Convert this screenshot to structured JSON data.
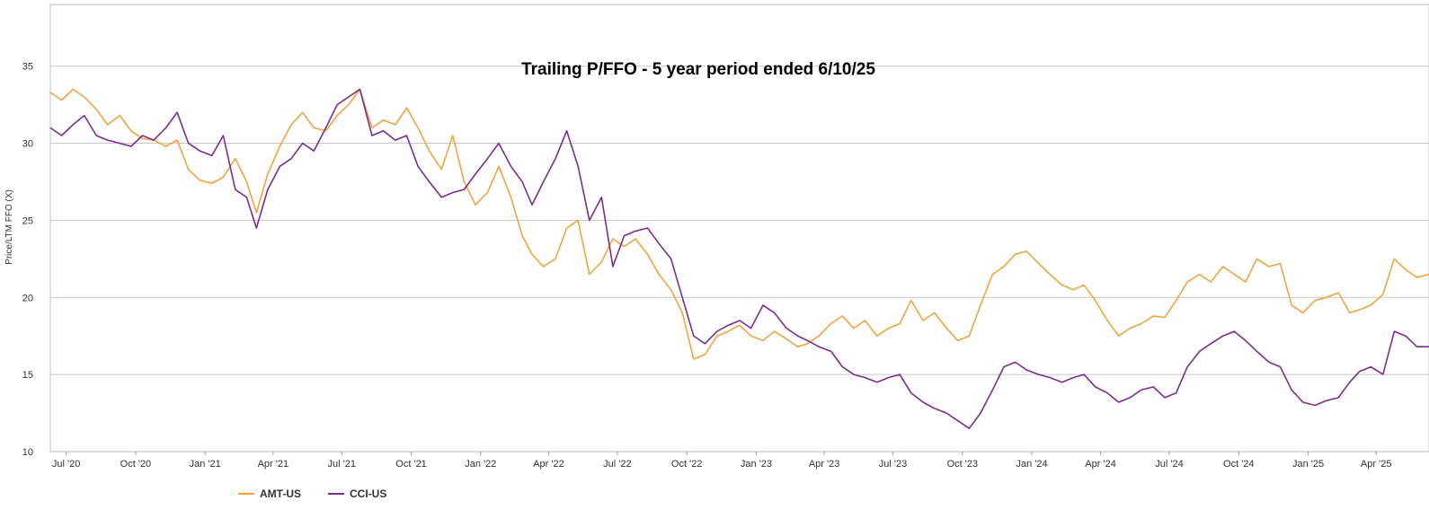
{
  "chart_data": {
    "type": "line",
    "title": "Trailing P/FFO - 5 year period ended 6/10/25",
    "ylabel": "Price/LTM FFO (X)",
    "xlabel": "",
    "ylim": [
      10,
      39
    ],
    "x_start": "2020-06-10",
    "x_end": "2025-06-10",
    "y_ticks": [
      10,
      15,
      20,
      25,
      30,
      35
    ],
    "x_ticks": [
      {
        "label": "Jul '20",
        "date": "2020-07-01"
      },
      {
        "label": "Oct '20",
        "date": "2020-10-01"
      },
      {
        "label": "Jan '21",
        "date": "2021-01-01"
      },
      {
        "label": "Apr '21",
        "date": "2021-04-01"
      },
      {
        "label": "Jul '21",
        "date": "2021-07-01"
      },
      {
        "label": "Oct '21",
        "date": "2021-10-01"
      },
      {
        "label": "Jan '22",
        "date": "2022-01-01"
      },
      {
        "label": "Apr '22",
        "date": "2022-04-01"
      },
      {
        "label": "Jul '22",
        "date": "2022-07-01"
      },
      {
        "label": "Oct '22",
        "date": "2022-10-01"
      },
      {
        "label": "Jan '23",
        "date": "2023-01-01"
      },
      {
        "label": "Apr '23",
        "date": "2023-04-01"
      },
      {
        "label": "Jul '23",
        "date": "2023-07-01"
      },
      {
        "label": "Oct '23",
        "date": "2023-10-01"
      },
      {
        "label": "Jan '24",
        "date": "2024-01-01"
      },
      {
        "label": "Apr '24",
        "date": "2024-04-01"
      },
      {
        "label": "Jul '24",
        "date": "2024-07-01"
      },
      {
        "label": "Oct '24",
        "date": "2024-10-01"
      },
      {
        "label": "Jan '25",
        "date": "2025-01-01"
      },
      {
        "label": "Apr '25",
        "date": "2025-04-01"
      }
    ],
    "grid": "horizontal",
    "legend_position": "bottom-left",
    "series": [
      {
        "name": "AMT-US",
        "color": "#F2A341",
        "points": [
          [
            "2020-06-10",
            33.3
          ],
          [
            "2020-06-25",
            32.8
          ],
          [
            "2020-07-10",
            33.5
          ],
          [
            "2020-07-25",
            33.0
          ],
          [
            "2020-08-10",
            32.2
          ],
          [
            "2020-08-25",
            31.2
          ],
          [
            "2020-09-10",
            31.8
          ],
          [
            "2020-09-25",
            30.8
          ],
          [
            "2020-10-10",
            30.3
          ],
          [
            "2020-10-25",
            30.2
          ],
          [
            "2020-11-10",
            29.8
          ],
          [
            "2020-11-25",
            30.2
          ],
          [
            "2020-12-10",
            28.3
          ],
          [
            "2020-12-25",
            27.6
          ],
          [
            "2021-01-10",
            27.4
          ],
          [
            "2021-01-25",
            27.8
          ],
          [
            "2021-02-10",
            29.0
          ],
          [
            "2021-02-25",
            27.5
          ],
          [
            "2021-03-10",
            25.5
          ],
          [
            "2021-03-25",
            28.0
          ],
          [
            "2021-04-10",
            29.8
          ],
          [
            "2021-04-25",
            31.2
          ],
          [
            "2021-05-10",
            32.0
          ],
          [
            "2021-05-25",
            31.0
          ],
          [
            "2021-06-10",
            30.8
          ],
          [
            "2021-06-25",
            31.8
          ],
          [
            "2021-07-10",
            32.5
          ],
          [
            "2021-07-25",
            33.5
          ],
          [
            "2021-08-10",
            31.0
          ],
          [
            "2021-08-25",
            31.5
          ],
          [
            "2021-09-10",
            31.2
          ],
          [
            "2021-09-25",
            32.3
          ],
          [
            "2021-10-10",
            31.0
          ],
          [
            "2021-10-25",
            29.5
          ],
          [
            "2021-11-10",
            28.3
          ],
          [
            "2021-11-25",
            30.5
          ],
          [
            "2021-12-10",
            27.5
          ],
          [
            "2021-12-25",
            26.0
          ],
          [
            "2022-01-10",
            26.8
          ],
          [
            "2022-01-25",
            28.5
          ],
          [
            "2022-02-10",
            26.5
          ],
          [
            "2022-02-25",
            24.0
          ],
          [
            "2022-03-10",
            22.8
          ],
          [
            "2022-03-25",
            22.0
          ],
          [
            "2022-04-10",
            22.5
          ],
          [
            "2022-04-25",
            24.5
          ],
          [
            "2022-05-10",
            25.0
          ],
          [
            "2022-05-25",
            21.5
          ],
          [
            "2022-06-10",
            22.3
          ],
          [
            "2022-06-25",
            23.8
          ],
          [
            "2022-07-10",
            23.3
          ],
          [
            "2022-07-25",
            23.8
          ],
          [
            "2022-08-10",
            22.8
          ],
          [
            "2022-08-25",
            21.5
          ],
          [
            "2022-09-10",
            20.5
          ],
          [
            "2022-09-25",
            19.0
          ],
          [
            "2022-10-10",
            16.0
          ],
          [
            "2022-10-25",
            16.3
          ],
          [
            "2022-11-10",
            17.5
          ],
          [
            "2022-11-25",
            17.8
          ],
          [
            "2022-12-10",
            18.2
          ],
          [
            "2022-12-25",
            17.5
          ],
          [
            "2023-01-10",
            17.2
          ],
          [
            "2023-01-25",
            17.8
          ],
          [
            "2023-02-10",
            17.3
          ],
          [
            "2023-02-25",
            16.8
          ],
          [
            "2023-03-10",
            17.0
          ],
          [
            "2023-03-25",
            17.5
          ],
          [
            "2023-04-10",
            18.3
          ],
          [
            "2023-04-25",
            18.8
          ],
          [
            "2023-05-10",
            18.0
          ],
          [
            "2023-05-25",
            18.5
          ],
          [
            "2023-06-10",
            17.5
          ],
          [
            "2023-06-25",
            18.0
          ],
          [
            "2023-07-10",
            18.3
          ],
          [
            "2023-07-25",
            19.8
          ],
          [
            "2023-08-10",
            18.5
          ],
          [
            "2023-08-25",
            19.0
          ],
          [
            "2023-09-10",
            18.0
          ],
          [
            "2023-09-25",
            17.2
          ],
          [
            "2023-10-10",
            17.5
          ],
          [
            "2023-10-25",
            19.5
          ],
          [
            "2023-11-10",
            21.5
          ],
          [
            "2023-11-25",
            22.0
          ],
          [
            "2023-12-10",
            22.8
          ],
          [
            "2023-12-25",
            23.0
          ],
          [
            "2024-01-10",
            22.2
          ],
          [
            "2024-01-25",
            21.5
          ],
          [
            "2024-02-10",
            20.8
          ],
          [
            "2024-02-25",
            20.5
          ],
          [
            "2024-03-10",
            20.8
          ],
          [
            "2024-03-25",
            19.8
          ],
          [
            "2024-04-10",
            18.5
          ],
          [
            "2024-04-25",
            17.5
          ],
          [
            "2024-05-10",
            18.0
          ],
          [
            "2024-05-25",
            18.3
          ],
          [
            "2024-06-10",
            18.8
          ],
          [
            "2024-06-25",
            18.7
          ],
          [
            "2024-07-10",
            19.8
          ],
          [
            "2024-07-25",
            21.0
          ],
          [
            "2024-08-10",
            21.5
          ],
          [
            "2024-08-25",
            21.0
          ],
          [
            "2024-09-10",
            22.0
          ],
          [
            "2024-09-25",
            21.5
          ],
          [
            "2024-10-10",
            21.0
          ],
          [
            "2024-10-25",
            22.5
          ],
          [
            "2024-11-10",
            22.0
          ],
          [
            "2024-11-25",
            22.2
          ],
          [
            "2024-12-10",
            19.5
          ],
          [
            "2024-12-25",
            19.0
          ],
          [
            "2025-01-10",
            19.8
          ],
          [
            "2025-01-25",
            20.0
          ],
          [
            "2025-02-10",
            20.3
          ],
          [
            "2025-02-25",
            19.0
          ],
          [
            "2025-03-10",
            19.2
          ],
          [
            "2025-03-25",
            19.5
          ],
          [
            "2025-04-10",
            20.2
          ],
          [
            "2025-04-25",
            22.5
          ],
          [
            "2025-05-10",
            21.8
          ],
          [
            "2025-05-25",
            21.3
          ],
          [
            "2025-06-10",
            21.5
          ]
        ]
      },
      {
        "name": "CCI-US",
        "color": "#7B2D8E",
        "points": [
          [
            "2020-06-10",
            31.0
          ],
          [
            "2020-06-25",
            30.5
          ],
          [
            "2020-07-10",
            31.2
          ],
          [
            "2020-07-25",
            31.8
          ],
          [
            "2020-08-10",
            30.5
          ],
          [
            "2020-08-25",
            30.2
          ],
          [
            "2020-09-10",
            30.0
          ],
          [
            "2020-09-25",
            29.8
          ],
          [
            "2020-10-10",
            30.5
          ],
          [
            "2020-10-25",
            30.2
          ],
          [
            "2020-11-10",
            31.0
          ],
          [
            "2020-11-25",
            32.0
          ],
          [
            "2020-12-10",
            30.0
          ],
          [
            "2020-12-25",
            29.5
          ],
          [
            "2021-01-10",
            29.2
          ],
          [
            "2021-01-25",
            30.5
          ],
          [
            "2021-02-10",
            27.0
          ],
          [
            "2021-02-25",
            26.5
          ],
          [
            "2021-03-10",
            24.5
          ],
          [
            "2021-03-25",
            27.0
          ],
          [
            "2021-04-10",
            28.5
          ],
          [
            "2021-04-25",
            29.0
          ],
          [
            "2021-05-10",
            30.0
          ],
          [
            "2021-05-25",
            29.5
          ],
          [
            "2021-06-10",
            31.0
          ],
          [
            "2021-06-25",
            32.5
          ],
          [
            "2021-07-10",
            33.0
          ],
          [
            "2021-07-25",
            33.5
          ],
          [
            "2021-08-10",
            30.5
          ],
          [
            "2021-08-25",
            30.8
          ],
          [
            "2021-09-10",
            30.2
          ],
          [
            "2021-09-25",
            30.5
          ],
          [
            "2021-10-10",
            28.5
          ],
          [
            "2021-10-25",
            27.5
          ],
          [
            "2021-11-10",
            26.5
          ],
          [
            "2021-11-25",
            26.8
          ],
          [
            "2021-12-10",
            27.0
          ],
          [
            "2021-12-25",
            28.0
          ],
          [
            "2022-01-10",
            29.0
          ],
          [
            "2022-01-25",
            30.0
          ],
          [
            "2022-02-10",
            28.5
          ],
          [
            "2022-02-25",
            27.5
          ],
          [
            "2022-03-10",
            26.0
          ],
          [
            "2022-03-25",
            27.5
          ],
          [
            "2022-04-10",
            29.0
          ],
          [
            "2022-04-25",
            30.8
          ],
          [
            "2022-05-10",
            28.5
          ],
          [
            "2022-05-25",
            25.0
          ],
          [
            "2022-06-10",
            26.5
          ],
          [
            "2022-06-25",
            22.0
          ],
          [
            "2022-07-10",
            24.0
          ],
          [
            "2022-07-25",
            24.3
          ],
          [
            "2022-08-10",
            24.5
          ],
          [
            "2022-08-25",
            23.5
          ],
          [
            "2022-09-10",
            22.5
          ],
          [
            "2022-09-25",
            20.0
          ],
          [
            "2022-10-10",
            17.5
          ],
          [
            "2022-10-25",
            17.0
          ],
          [
            "2022-11-10",
            17.8
          ],
          [
            "2022-11-25",
            18.2
          ],
          [
            "2022-12-10",
            18.5
          ],
          [
            "2022-12-25",
            18.0
          ],
          [
            "2023-01-10",
            19.5
          ],
          [
            "2023-01-25",
            19.0
          ],
          [
            "2023-02-10",
            18.0
          ],
          [
            "2023-02-25",
            17.5
          ],
          [
            "2023-03-10",
            17.2
          ],
          [
            "2023-03-25",
            16.8
          ],
          [
            "2023-04-10",
            16.5
          ],
          [
            "2023-04-25",
            15.5
          ],
          [
            "2023-05-10",
            15.0
          ],
          [
            "2023-05-25",
            14.8
          ],
          [
            "2023-06-10",
            14.5
          ],
          [
            "2023-06-25",
            14.8
          ],
          [
            "2023-07-10",
            15.0
          ],
          [
            "2023-07-25",
            13.8
          ],
          [
            "2023-08-10",
            13.2
          ],
          [
            "2023-08-25",
            12.8
          ],
          [
            "2023-09-10",
            12.5
          ],
          [
            "2023-09-25",
            12.0
          ],
          [
            "2023-10-10",
            11.5
          ],
          [
            "2023-10-25",
            12.5
          ],
          [
            "2023-11-10",
            14.0
          ],
          [
            "2023-11-25",
            15.5
          ],
          [
            "2023-12-10",
            15.8
          ],
          [
            "2023-12-25",
            15.3
          ],
          [
            "2024-01-10",
            15.0
          ],
          [
            "2024-01-25",
            14.8
          ],
          [
            "2024-02-10",
            14.5
          ],
          [
            "2024-02-25",
            14.8
          ],
          [
            "2024-03-10",
            15.0
          ],
          [
            "2024-03-25",
            14.2
          ],
          [
            "2024-04-10",
            13.8
          ],
          [
            "2024-04-25",
            13.2
          ],
          [
            "2024-05-10",
            13.5
          ],
          [
            "2024-05-25",
            14.0
          ],
          [
            "2024-06-10",
            14.2
          ],
          [
            "2024-06-25",
            13.5
          ],
          [
            "2024-07-10",
            13.8
          ],
          [
            "2024-07-25",
            15.5
          ],
          [
            "2024-08-10",
            16.5
          ],
          [
            "2024-08-25",
            17.0
          ],
          [
            "2024-09-10",
            17.5
          ],
          [
            "2024-09-25",
            17.8
          ],
          [
            "2024-10-10",
            17.2
          ],
          [
            "2024-10-25",
            16.5
          ],
          [
            "2024-11-10",
            15.8
          ],
          [
            "2024-11-25",
            15.5
          ],
          [
            "2024-12-10",
            14.0
          ],
          [
            "2024-12-25",
            13.2
          ],
          [
            "2025-01-10",
            13.0
          ],
          [
            "2025-01-25",
            13.3
          ],
          [
            "2025-02-10",
            13.5
          ],
          [
            "2025-02-25",
            14.5
          ],
          [
            "2025-03-10",
            15.2
          ],
          [
            "2025-03-25",
            15.5
          ],
          [
            "2025-04-10",
            15.0
          ],
          [
            "2025-04-25",
            17.8
          ],
          [
            "2025-05-10",
            17.5
          ],
          [
            "2025-05-25",
            16.8
          ],
          [
            "2025-06-10",
            16.8
          ]
        ]
      }
    ]
  }
}
